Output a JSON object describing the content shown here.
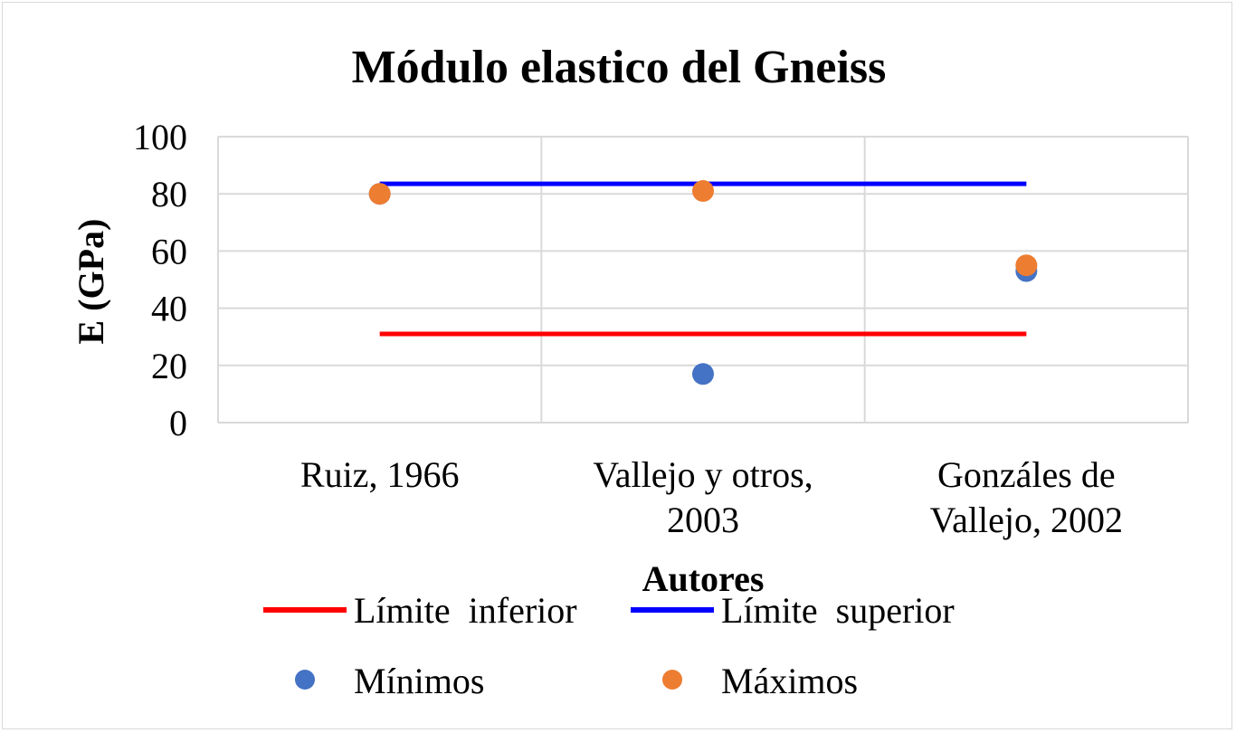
{
  "chart_data": {
    "type": "scatter",
    "title": "Módulo elastico del Gneiss",
    "xlabel": "Autores",
    "ylabel": "E (GPa)",
    "ylim": [
      0,
      100
    ],
    "yticks": [
      0,
      20,
      40,
      60,
      80,
      100
    ],
    "categories": [
      [
        "Ruiz, 1966"
      ],
      [
        "Vallejo y otros,",
        "2003"
      ],
      [
        "Gonzáles de",
        "Vallejo, 2002"
      ]
    ],
    "grid": true,
    "legend_position": "bottom",
    "series": [
      {
        "name": "Límite  inferior",
        "kind": "line",
        "color": "#ff0000",
        "values": [
          31,
          31,
          31
        ]
      },
      {
        "name": "Límite  superior",
        "kind": "line",
        "color": "#0000ff",
        "values": [
          83.5,
          83.5,
          83.5
        ]
      },
      {
        "name": "Mínimos",
        "kind": "marker",
        "color": "#4472c4",
        "values": [
          80,
          17,
          53
        ]
      },
      {
        "name": "Máximos",
        "kind": "marker",
        "color": "#ed7d31",
        "values": [
          80,
          81,
          55
        ]
      }
    ]
  }
}
